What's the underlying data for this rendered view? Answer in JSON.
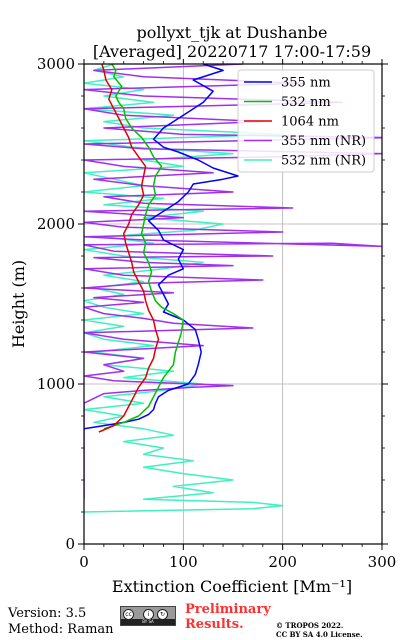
{
  "chart_data": {
    "type": "line",
    "title": "pollyxt_tjk at Dushanbe",
    "subtitle": "[Averaged] 20220717 17:00-17:59",
    "xlabel": "Extinction Coefficient [Mm⁻¹]",
    "ylabel": "Height (m)",
    "xlim": [
      0,
      300
    ],
    "ylim": [
      0,
      3000
    ],
    "x_ticks": [
      "0",
      "100",
      "200",
      "300"
    ],
    "y_ticks": [
      "0",
      "1000",
      "2000",
      "3000"
    ],
    "grid": true,
    "legend_position": "top-right",
    "series": [
      {
        "name": "355 nm",
        "color": "#0000ff",
        "points": [
          [
            0,
            720
          ],
          [
            20,
            740
          ],
          [
            40,
            760
          ],
          [
            55,
            780
          ],
          [
            65,
            810
          ],
          [
            70,
            840
          ],
          [
            72,
            880
          ],
          [
            75,
            920
          ],
          [
            85,
            960
          ],
          [
            105,
            1000
          ],
          [
            112,
            1060
          ],
          [
            115,
            1120
          ],
          [
            118,
            1200
          ],
          [
            115,
            1280
          ],
          [
            112,
            1340
          ],
          [
            100,
            1400
          ],
          [
            80,
            1450
          ],
          [
            85,
            1500
          ],
          [
            80,
            1560
          ],
          [
            75,
            1620
          ],
          [
            85,
            1680
          ],
          [
            100,
            1720
          ],
          [
            95,
            1780
          ],
          [
            100,
            1840
          ],
          [
            80,
            1900
          ],
          [
            75,
            1960
          ],
          [
            65,
            2020
          ],
          [
            80,
            2080
          ],
          [
            95,
            2140
          ],
          [
            105,
            2200
          ],
          [
            110,
            2250
          ],
          [
            140,
            2280
          ],
          [
            155,
            2300
          ],
          [
            130,
            2350
          ],
          [
            115,
            2400
          ],
          [
            95,
            2450
          ],
          [
            80,
            2480
          ],
          [
            70,
            2530
          ],
          [
            80,
            2600
          ],
          [
            100,
            2680
          ],
          [
            120,
            2760
          ],
          [
            130,
            2830
          ],
          [
            110,
            2900
          ],
          [
            140,
            2960
          ],
          [
            120,
            3000
          ]
        ]
      },
      {
        "name": "532 nm",
        "color": "#00c000",
        "points": [
          [
            20,
            720
          ],
          [
            40,
            760
          ],
          [
            55,
            800
          ],
          [
            65,
            860
          ],
          [
            70,
            920
          ],
          [
            75,
            980
          ],
          [
            80,
            1040
          ],
          [
            85,
            1080
          ],
          [
            90,
            1120
          ],
          [
            92,
            1200
          ],
          [
            95,
            1260
          ],
          [
            98,
            1320
          ],
          [
            100,
            1400
          ],
          [
            90,
            1440
          ],
          [
            78,
            1480
          ],
          [
            72,
            1520
          ],
          [
            68,
            1580
          ],
          [
            65,
            1640
          ],
          [
            68,
            1700
          ],
          [
            65,
            1760
          ],
          [
            60,
            1820
          ],
          [
            62,
            1880
          ],
          [
            58,
            1940
          ],
          [
            60,
            2000
          ],
          [
            62,
            2060
          ],
          [
            65,
            2120
          ],
          [
            72,
            2180
          ],
          [
            70,
            2240
          ],
          [
            72,
            2300
          ],
          [
            78,
            2360
          ],
          [
            70,
            2420
          ],
          [
            65,
            2480
          ],
          [
            58,
            2540
          ],
          [
            48,
            2600
          ],
          [
            42,
            2660
          ],
          [
            40,
            2720
          ],
          [
            35,
            2760
          ],
          [
            32,
            2800
          ],
          [
            38,
            2860
          ],
          [
            30,
            2920
          ],
          [
            32,
            2960
          ],
          [
            28,
            3000
          ]
        ]
      },
      {
        "name": "1064 nm",
        "color": "#e00000",
        "points": [
          [
            15,
            700
          ],
          [
            30,
            740
          ],
          [
            40,
            800
          ],
          [
            45,
            860
          ],
          [
            50,
            920
          ],
          [
            55,
            980
          ],
          [
            62,
            1040
          ],
          [
            65,
            1100
          ],
          [
            70,
            1160
          ],
          [
            72,
            1220
          ],
          [
            75,
            1280
          ],
          [
            72,
            1340
          ],
          [
            70,
            1400
          ],
          [
            65,
            1460
          ],
          [
            62,
            1520
          ],
          [
            60,
            1580
          ],
          [
            55,
            1640
          ],
          [
            50,
            1700
          ],
          [
            48,
            1760
          ],
          [
            45,
            1820
          ],
          [
            42,
            1880
          ],
          [
            40,
            1940
          ],
          [
            45,
            2000
          ],
          [
            48,
            2060
          ],
          [
            55,
            2120
          ],
          [
            60,
            2180
          ],
          [
            58,
            2240
          ],
          [
            60,
            2300
          ],
          [
            62,
            2360
          ],
          [
            55,
            2420
          ],
          [
            48,
            2480
          ],
          [
            45,
            2540
          ],
          [
            40,
            2600
          ],
          [
            35,
            2660
          ],
          [
            30,
            2720
          ],
          [
            25,
            2780
          ],
          [
            28,
            2840
          ],
          [
            22,
            2900
          ],
          [
            20,
            2960
          ],
          [
            18,
            3000
          ]
        ]
      },
      {
        "name": "355 nm (NR)",
        "color": "#a030f0",
        "points": [
          [
            0,
            280
          ],
          [
            0,
            400
          ],
          [
            0,
            520
          ],
          [
            0,
            640
          ],
          [
            0,
            760
          ],
          [
            0,
            880
          ],
          [
            20,
            940
          ],
          [
            60,
            960
          ],
          [
            110,
            980
          ],
          [
            150,
            990
          ],
          [
            30,
            1020
          ],
          [
            0,
            1050
          ],
          [
            40,
            1080
          ],
          [
            20,
            1120
          ],
          [
            60,
            1160
          ],
          [
            0,
            1200
          ],
          [
            120,
            1240
          ],
          [
            40,
            1280
          ],
          [
            0,
            1320
          ],
          [
            170,
            1350
          ],
          [
            90,
            1380
          ],
          [
            60,
            1410
          ],
          [
            20,
            1440
          ],
          [
            0,
            1480
          ],
          [
            60,
            1510
          ],
          [
            10,
            1540
          ],
          [
            90,
            1570
          ],
          [
            0,
            1600
          ],
          [
            60,
            1630
          ],
          [
            180,
            1650
          ],
          [
            40,
            1680
          ],
          [
            0,
            1720
          ],
          [
            150,
            1740
          ],
          [
            60,
            1760
          ],
          [
            10,
            1790
          ],
          [
            190,
            1800
          ],
          [
            30,
            1830
          ],
          [
            0,
            1870
          ],
          [
            250,
            1880
          ],
          [
            300,
            1860
          ],
          [
            60,
            1900
          ],
          [
            0,
            1920
          ],
          [
            200,
            1950
          ],
          [
            40,
            1980
          ],
          [
            0,
            2010
          ],
          [
            100,
            2040
          ],
          [
            0,
            2080
          ],
          [
            210,
            2100
          ],
          [
            60,
            2130
          ],
          [
            20,
            2170
          ],
          [
            150,
            2200
          ],
          [
            60,
            2240
          ],
          [
            10,
            2280
          ],
          [
            130,
            2320
          ],
          [
            40,
            2360
          ],
          [
            0,
            2400
          ],
          [
            200,
            2420
          ],
          [
            300,
            2440
          ],
          [
            60,
            2470
          ],
          [
            0,
            2500
          ],
          [
            310,
            2540
          ],
          [
            100,
            2560
          ],
          [
            20,
            2600
          ],
          [
            180,
            2640
          ],
          [
            40,
            2680
          ],
          [
            0,
            2720
          ],
          [
            260,
            2760
          ],
          [
            60,
            2800
          ],
          [
            0,
            2840
          ],
          [
            220,
            2880
          ],
          [
            60,
            2920
          ],
          [
            10,
            2960
          ],
          [
            160,
            3000
          ]
        ]
      },
      {
        "name": "532 nm (NR)",
        "color": "#40f0c0",
        "points": [
          [
            0,
            200
          ],
          [
            170,
            220
          ],
          [
            200,
            240
          ],
          [
            170,
            260
          ],
          [
            60,
            280
          ],
          [
            130,
            320
          ],
          [
            90,
            360
          ],
          [
            150,
            400
          ],
          [
            100,
            440
          ],
          [
            60,
            480
          ],
          [
            110,
            520
          ],
          [
            60,
            560
          ],
          [
            80,
            600
          ],
          [
            40,
            640
          ],
          [
            90,
            680
          ],
          [
            60,
            720
          ],
          [
            10,
            760
          ],
          [
            40,
            800
          ],
          [
            0,
            840
          ],
          [
            60,
            880
          ],
          [
            20,
            920
          ],
          [
            80,
            960
          ],
          [
            120,
            1000
          ],
          [
            40,
            1040
          ],
          [
            90,
            1080
          ],
          [
            20,
            1120
          ],
          [
            60,
            1160
          ],
          [
            10,
            1200
          ],
          [
            70,
            1240
          ],
          [
            20,
            1280
          ],
          [
            0,
            1320
          ],
          [
            40,
            1360
          ],
          [
            0,
            1400
          ],
          [
            60,
            1440
          ],
          [
            20,
            1480
          ],
          [
            0,
            1520
          ],
          [
            40,
            1560
          ],
          [
            10,
            1600
          ],
          [
            60,
            1640
          ],
          [
            20,
            1680
          ],
          [
            80,
            1720
          ],
          [
            120,
            1760
          ],
          [
            40,
            1800
          ],
          [
            0,
            1840
          ],
          [
            70,
            1880
          ],
          [
            20,
            1920
          ],
          [
            110,
            1960
          ],
          [
            140,
            2000
          ],
          [
            60,
            2040
          ],
          [
            120,
            2080
          ],
          [
            20,
            2120
          ],
          [
            80,
            2160
          ],
          [
            0,
            2200
          ],
          [
            60,
            2240
          ],
          [
            30,
            2280
          ],
          [
            0,
            2320
          ],
          [
            100,
            2360
          ],
          [
            60,
            2400
          ],
          [
            150,
            2440
          ],
          [
            50,
            2480
          ],
          [
            0,
            2520
          ],
          [
            200,
            2560
          ],
          [
            60,
            2600
          ],
          [
            20,
            2640
          ],
          [
            90,
            2680
          ],
          [
            0,
            2720
          ],
          [
            70,
            2760
          ],
          [
            20,
            2800
          ],
          [
            60,
            2840
          ],
          [
            0,
            2880
          ],
          [
            40,
            2920
          ],
          [
            10,
            2960
          ],
          [
            30,
            3000
          ]
        ]
      }
    ]
  },
  "footer": {
    "version": "Version: 3.5",
    "method": "Method: Raman",
    "license_badge_text": "BY SA",
    "preliminary_line1": "Preliminary",
    "preliminary_line2": "Results.",
    "copyright_line1": "© TROPOS 2022.",
    "copyright_line2": "CC BY SA 4.0 License."
  }
}
